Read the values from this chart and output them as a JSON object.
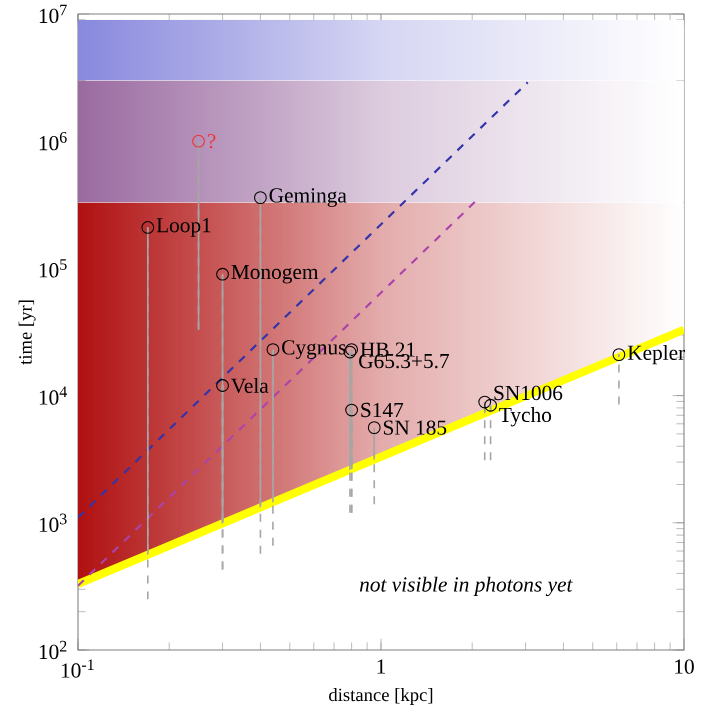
{
  "chart_data": {
    "type": "scatter",
    "xlabel": "distance [kpc]",
    "ylabel": "time [yr]",
    "log": "xy",
    "xlim": [
      0.1,
      10
    ],
    "ylim": [
      100,
      10000000
    ],
    "xticks": [
      {
        "value": 0.1,
        "label": "10$^{-1}$"
      },
      1,
      10
    ],
    "yticks": [
      {
        "value": 100,
        "label": "10$^{2}$"
      },
      {
        "value": 1000,
        "label": "10$^{3}$"
      },
      {
        "value": 10000,
        "label": "10$^{4}$"
      },
      {
        "value": 100000,
        "label": "10$^{5}$"
      },
      {
        "value": 1000000,
        "label": "10$^{6}$"
      },
      {
        "value": 10000000,
        "label": "10$^{7}$"
      }
    ],
    "grid": false,
    "marker": "circle",
    "annotations": [
      "not visible in photons yet"
    ],
    "bands": [
      {
        "axis": "y",
        "from": 3000000,
        "to": 9000000,
        "color": "#8888dd"
      },
      {
        "axis": "y",
        "from": 330000,
        "to": 3000000,
        "color": "#9a6aa0"
      },
      {
        "axis": "y",
        "from": 330,
        "to": 330000,
        "color": "#b01010"
      }
    ],
    "series": [
      {
        "type": "line",
        "color": "#ffff00",
        "line_style": "solid",
        "marker": "none",
        "x": [
          0.1,
          10
        ],
        "values": [
          330,
          33000
        ]
      },
      {
        "type": "line",
        "color": "#3333aa",
        "line_style": "dashed",
        "marker": "none",
        "x": [
          0.1,
          3.05
        ],
        "values": [
          1100,
          2900000
        ]
      },
      {
        "type": "line",
        "color": "#aa44aa",
        "line_style": "dashed",
        "marker": "none",
        "x": [
          0.1,
          2.06
        ],
        "values": [
          320,
          340000
        ]
      },
      {
        "name": "?",
        "color": "#ee3333",
        "x": [
          0.25
        ],
        "values": [
          1000000
        ],
        "errors": [
          [
            33000,
            1000000
          ]
        ]
      },
      {
        "name": "Loop1",
        "color": "#000000",
        "x": [
          0.17
        ],
        "values": [
          210000
        ],
        "errors": [
          [
            250,
            210000
          ]
        ]
      },
      {
        "name": "Geminga",
        "color": "#000000",
        "x": [
          0.4
        ],
        "values": [
          360000
        ],
        "errors": [
          [
            570,
            360000
          ]
        ]
      },
      {
        "name": "Monogem",
        "color": "#000000",
        "x": [
          0.3
        ],
        "values": [
          90000
        ],
        "errors": [
          [
            430,
            90000
          ]
        ]
      },
      {
        "name": "Vela",
        "color": "#000000",
        "x": [
          0.3
        ],
        "values": [
          12000
        ],
        "errors": [
          [
            430,
            12000
          ]
        ]
      },
      {
        "name": "Cygnus",
        "color": "#000000",
        "x": [
          0.44
        ],
        "values": [
          23000
        ],
        "errors": [
          [
            660,
            23000
          ]
        ]
      },
      {
        "name": "HB 21",
        "color": "#000000",
        "x": [
          0.8
        ],
        "values": [
          23000
        ],
        "errors": [
          [
            1200,
            23000
          ]
        ]
      },
      {
        "name": "G65.3+5.7",
        "color": "#000000",
        "x": [
          0.79
        ],
        "values": [
          22000
        ],
        "errors": [
          [
            1200,
            22000
          ]
        ]
      },
      {
        "name": "S147",
        "color": "#000000",
        "x": [
          0.8
        ],
        "values": [
          7700
        ],
        "errors": [
          [
            1200,
            7700
          ]
        ]
      },
      {
        "name": "SN 185",
        "color": "#000000",
        "x": [
          0.95
        ],
        "values": [
          5600
        ],
        "errors": [
          [
            1400,
            5600
          ]
        ]
      },
      {
        "name": "SN1006",
        "color": "#000000",
        "x": [
          2.2
        ],
        "values": [
          8900
        ],
        "errors": [
          [
            3100,
            8900
          ]
        ]
      },
      {
        "name": "Tycho",
        "color": "#000000",
        "x": [
          2.3
        ],
        "values": [
          8400
        ],
        "errors": [
          [
            3100,
            8400
          ]
        ]
      },
      {
        "name": "Kepler",
        "color": "#000000",
        "x": [
          6.1
        ],
        "values": [
          21000
        ],
        "errors": [
          [
            8500,
            21000
          ]
        ]
      }
    ]
  }
}
